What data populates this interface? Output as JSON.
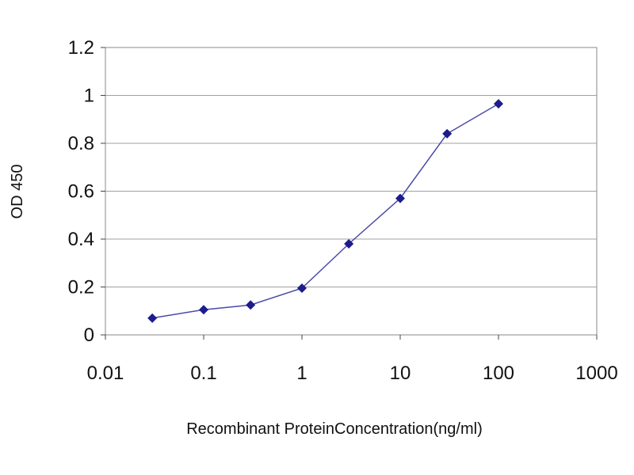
{
  "chart_data": {
    "type": "line",
    "xlabel": "Recombinant ProteinConcentration(ng/ml)",
    "ylabel": "OD 450",
    "x_scale": "log",
    "xlim": [
      0.01,
      1000
    ],
    "ylim": [
      0,
      1.2
    ],
    "x_ticks": [
      "0.01",
      "0.1",
      "1",
      "10",
      "100",
      "1000"
    ],
    "x_tick_values": [
      0.01,
      0.1,
      1,
      10,
      100,
      1000
    ],
    "y_ticks": [
      "0",
      "0.2",
      "0.4",
      "0.6",
      "0.8",
      "1",
      "1.2"
    ],
    "y_tick_values": [
      0,
      0.2,
      0.4,
      0.6,
      0.8,
      1,
      1.2
    ],
    "grid": "horizontal",
    "series": [
      {
        "color": "#1c1c8c",
        "x": [
          0.03,
          0.1,
          0.3,
          1,
          3,
          10,
          30,
          100
        ],
        "y": [
          0.07,
          0.105,
          0.125,
          0.195,
          0.38,
          0.57,
          0.84,
          0.965
        ]
      }
    ]
  }
}
